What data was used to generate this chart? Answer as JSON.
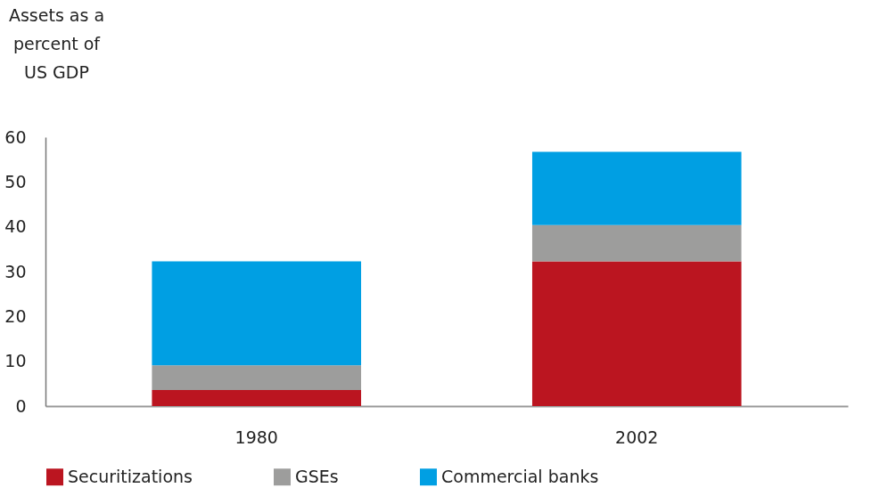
{
  "chart_data": {
    "type": "bar",
    "ylabel": "Assets as a percent of US GDP",
    "categories": [
      "1980",
      "2002"
    ],
    "series": [
      {
        "name": "Securitizations",
        "color": "#bb1520",
        "values": [
          3.6,
          32.3
        ]
      },
      {
        "name": "GSEs",
        "color": "#9d9d9c",
        "values": [
          5.5,
          8.1
        ]
      },
      {
        "name": "Commercial banks",
        "color": "#009fe3",
        "values": [
          23.2,
          16.3
        ]
      }
    ],
    "stacked": true,
    "ylim": [
      0,
      60
    ],
    "yticks": [
      0,
      10,
      20,
      30,
      40,
      50,
      60
    ],
    "grid": false,
    "legend": "bottom"
  }
}
